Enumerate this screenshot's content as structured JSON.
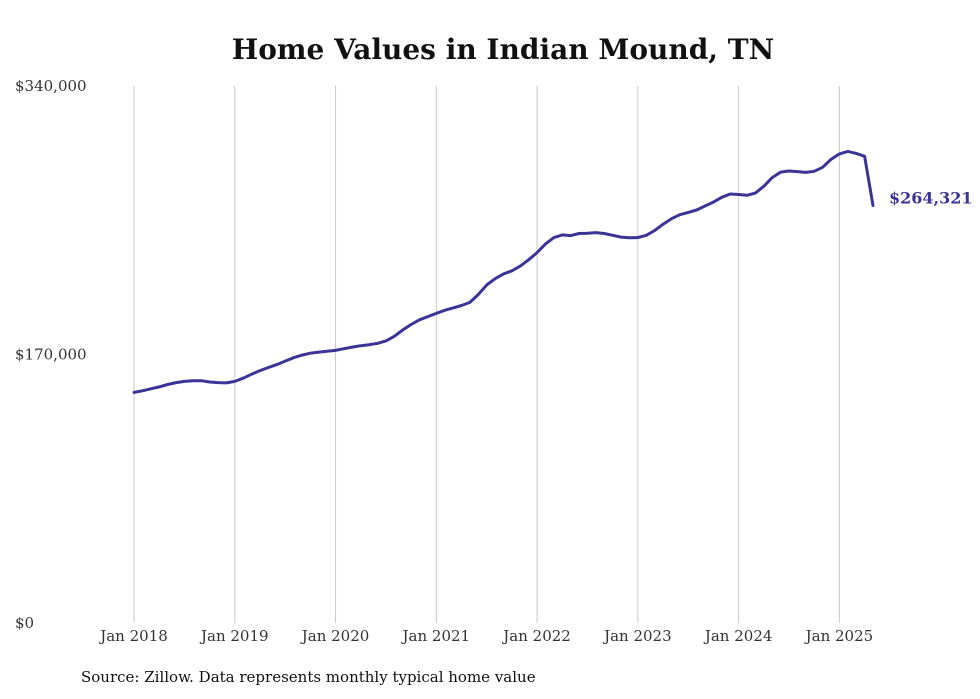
{
  "chart_data": {
    "type": "line",
    "title": "Home Values in Indian Mound, TN",
    "xlabel": "",
    "ylabel": "",
    "x_range": [
      "2018-01",
      "2025-05"
    ],
    "x_tick_labels": [
      "Jan 2018",
      "Jan 2019",
      "Jan 2020",
      "Jan 2021",
      "Jan 2022",
      "Jan 2023",
      "Jan 2024",
      "Jan 2025"
    ],
    "y_tick_labels": [
      "$0",
      "$170,000",
      "$340,000"
    ],
    "ylim": [
      0,
      340000
    ],
    "grid": "vertical",
    "line_color": "#3b3496",
    "series": [
      {
        "x": [
          "2018-01",
          "2018-02",
          "2018-03",
          "2018-04",
          "2018-05",
          "2018-06",
          "2018-07",
          "2018-08",
          "2018-09",
          "2018-10",
          "2018-11",
          "2018-12",
          "2019-01",
          "2019-02",
          "2019-03",
          "2019-04",
          "2019-05",
          "2019-06",
          "2019-07",
          "2019-08",
          "2019-09",
          "2019-10",
          "2019-11",
          "2019-12",
          "2020-01",
          "2020-02",
          "2020-03",
          "2020-04",
          "2020-05",
          "2020-06",
          "2020-07",
          "2020-08",
          "2020-09",
          "2020-10",
          "2020-11",
          "2020-12",
          "2021-01",
          "2021-02",
          "2021-03",
          "2021-04",
          "2021-05",
          "2021-06",
          "2021-07",
          "2021-08",
          "2021-09",
          "2021-10",
          "2021-11",
          "2021-12",
          "2022-01",
          "2022-02",
          "2022-03",
          "2022-04",
          "2022-05",
          "2022-06",
          "2022-07",
          "2022-08",
          "2022-09",
          "2022-10",
          "2022-11",
          "2022-12",
          "2023-01",
          "2023-02",
          "2023-03",
          "2023-04",
          "2023-05",
          "2023-06",
          "2023-07",
          "2023-08",
          "2023-09",
          "2023-10",
          "2023-11",
          "2023-12",
          "2024-01",
          "2024-02",
          "2024-03",
          "2024-04",
          "2024-05",
          "2024-06",
          "2024-07",
          "2024-08",
          "2024-09",
          "2024-10",
          "2024-11",
          "2024-12",
          "2025-01",
          "2025-02",
          "2025-03",
          "2025-04",
          "2025-05"
        ],
        "values": [
          146000,
          147000,
          148300,
          149500,
          151000,
          152200,
          153000,
          153400,
          153400,
          152600,
          152200,
          152000,
          153000,
          155000,
          157500,
          159800,
          161800,
          163600,
          165800,
          168000,
          169600,
          170800,
          171500,
          172000,
          172600,
          173700,
          174700,
          175600,
          176200,
          177000,
          178600,
          181500,
          185500,
          189000,
          192000,
          194000,
          196000,
          198000,
          199500,
          201000,
          203000,
          208000,
          214000,
          218000,
          221000,
          223000,
          226000,
          230000,
          234500,
          240000,
          244000,
          245700,
          245300,
          246600,
          246800,
          247200,
          246600,
          245500,
          244300,
          243900,
          244000,
          245500,
          248500,
          252500,
          256000,
          258500,
          260000,
          261500,
          264000,
          266500,
          269500,
          271600,
          271300,
          270800,
          272200,
          276500,
          282000,
          285500,
          286200,
          285800,
          285300,
          286000,
          288500,
          293500,
          297000,
          298600,
          297300,
          295500,
          264321
        ],
        "end_label": "$264,321"
      }
    ]
  },
  "footer": {
    "source": "Source: Zillow. Data represents monthly typical home value"
  }
}
